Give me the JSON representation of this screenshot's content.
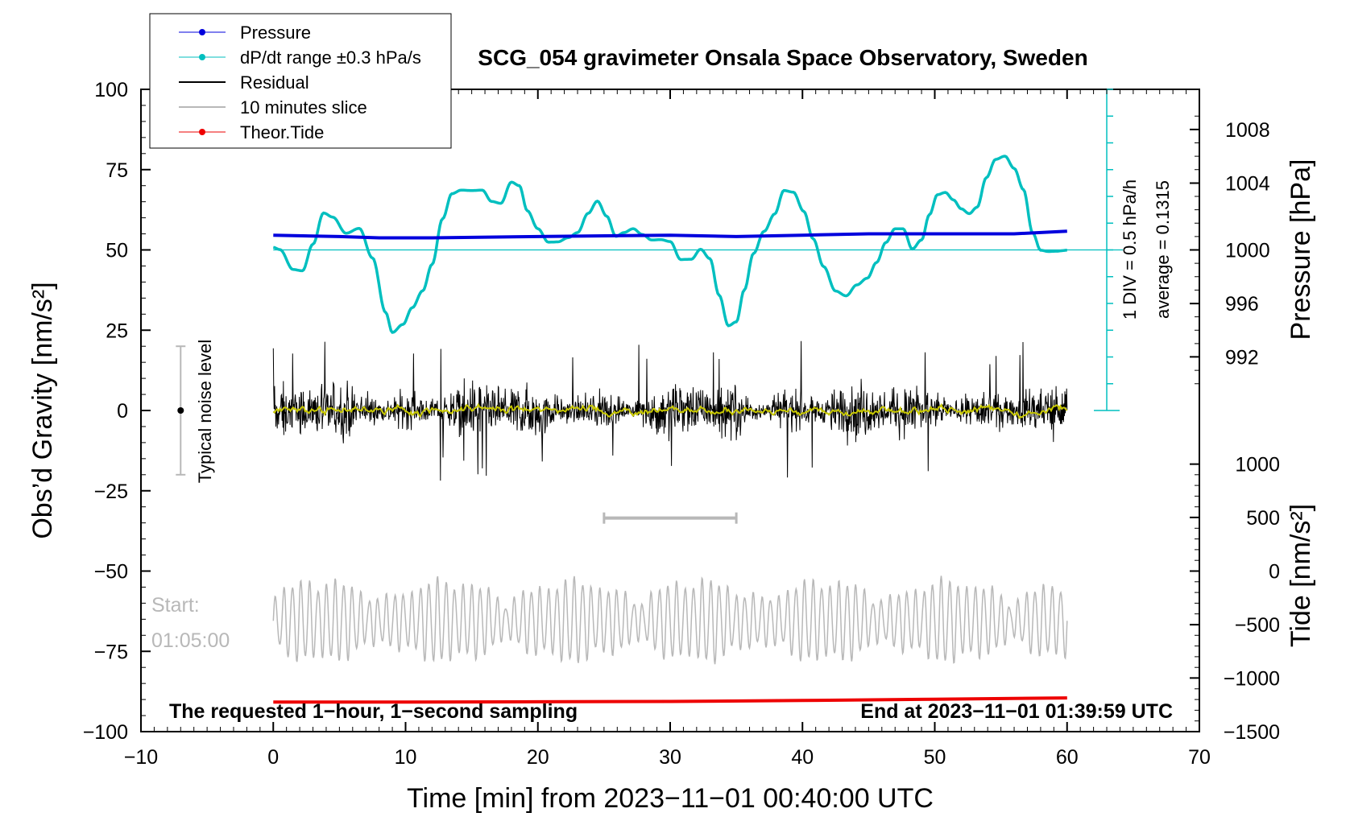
{
  "chart_data": {
    "type": "line",
    "title": "SCG_054 gravimeter Onsala Space Observatory, Sweden",
    "xlabel": "Time [min] from 2023−11−01 00:40:00 UTC",
    "ylabel_left": "Obs’d Gravity [nm/s²]",
    "ylabel_right_pressure": "Pressure [hPa]",
    "ylabel_right_tide": "Tide [nm/s²]",
    "xlim": [
      -10,
      70
    ],
    "ylim_left": [
      -100,
      100
    ],
    "x_ticks": [
      -10,
      0,
      10,
      20,
      30,
      40,
      50,
      60,
      70
    ],
    "x_tick_labels": [
      "−10",
      "0",
      "10",
      "20",
      "30",
      "40",
      "50",
      "60",
      "70"
    ],
    "y_ticks_left": [
      100,
      75,
      50,
      25,
      0,
      -25,
      -50,
      -75,
      -100
    ],
    "y_tick_labels_left": [
      "100",
      "75",
      "50",
      "25",
      "0",
      "−25",
      "−50",
      "−75",
      "−100"
    ],
    "pressure_axis": {
      "ticks": [
        1008,
        1004,
        1000,
        996,
        992
      ],
      "tick_labels": [
        "1008",
        "1004",
        "1000",
        "996",
        "992"
      ],
      "gravity_equiv": [
        87.5,
        70.8,
        50,
        33.3,
        16.7
      ]
    },
    "tide_axis": {
      "ticks": [
        1000,
        500,
        0,
        -500,
        -1000,
        -1500
      ],
      "tick_labels": [
        "1000",
        "500",
        "0",
        "−500",
        "−1000",
        "−1500"
      ],
      "gravity_equiv": [
        -16.7,
        -33.3,
        -50,
        -66.7,
        -83.3,
        -100
      ]
    },
    "legend": [
      {
        "label": "Pressure",
        "color": "#0000dd",
        "marker": true
      },
      {
        "label": "dP/dt range ±0.3 hPa/s",
        "color": "#00bfbf",
        "marker": true
      },
      {
        "label": "Residual",
        "color": "#000000",
        "marker": false
      },
      {
        "label": "10 minutes slice",
        "color": "#b8b8b8",
        "marker": false
      },
      {
        "label": "Theor.Tide",
        "color": "#ee0000",
        "marker": true
      }
    ],
    "series": [
      {
        "name": "Pressure",
        "color": "#0000dd",
        "x": [
          0,
          5,
          8,
          12,
          20,
          30,
          35,
          40,
          45,
          52,
          56,
          60
        ],
        "y": [
          1001.1,
          1001.0,
          1000.9,
          1000.9,
          1001.0,
          1001.1,
          1001.0,
          1001.1,
          1001.2,
          1001.2,
          1001.2,
          1001.4
        ]
      },
      {
        "name": "dP/dt range ±0.3 hPa/s",
        "color": "#00bfbf",
        "baseline": 50,
        "x": [
          0,
          0.5,
          1.5,
          2.2,
          3,
          3.8,
          4.5,
          5.5,
          6.5,
          7.5,
          8.5,
          9,
          9.8,
          10.5,
          11.3,
          12,
          12.8,
          13.5,
          14.2,
          15,
          15.8,
          16.5,
          17.2,
          18,
          18.6,
          19.2,
          20,
          20.8,
          21.5,
          22.3,
          23,
          23.8,
          24.5,
          25.2,
          25.9,
          26.5,
          27.2,
          27.9,
          28.6,
          29.3,
          30,
          30.8,
          31.6,
          32.3,
          33,
          33.7,
          34.4,
          35,
          35.6,
          36.3,
          37.1,
          37.9,
          38.6,
          39.3,
          40.1,
          40.8,
          41.6,
          42.5,
          43.3,
          44.1,
          44.9,
          45.6,
          46.3,
          47,
          47.6,
          48.3,
          49,
          49.6,
          50.2,
          50.8,
          51.4,
          52,
          52.6,
          53.2,
          53.9,
          54.6,
          55.3,
          56,
          56.7,
          57.4,
          58,
          58.6,
          59.2,
          60
        ],
        "y": [
          50.8,
          50.1,
          43.9,
          43.5,
          51.8,
          61.5,
          60.2,
          55.2,
          56.7,
          47.5,
          30.5,
          24.3,
          26.8,
          32.0,
          37.3,
          45.5,
          59.7,
          67.5,
          68.6,
          68.5,
          68.6,
          65.1,
          64.5,
          71.1,
          70.0,
          62.2,
          56.6,
          52.4,
          52.5,
          53.8,
          55.4,
          61.4,
          65.2,
          60.5,
          54.2,
          55.4,
          56.6,
          54.8,
          53.1,
          53.2,
          52.6,
          47.0,
          47.1,
          50.2,
          47.3,
          35.9,
          26.4,
          27.6,
          37.5,
          48.9,
          55.8,
          61.2,
          68.5,
          68.0,
          62.0,
          53.5,
          44.8,
          37.2,
          35.7,
          39.1,
          41.2,
          46.1,
          52.3,
          56.6,
          56.6,
          50.3,
          53.1,
          61.0,
          67.2,
          67.9,
          65.6,
          62.8,
          61.3,
          63.3,
          72.5,
          78.2,
          79.2,
          75.4,
          68.8,
          55.3,
          49.9,
          49.5,
          49.6,
          49.9
        ]
      },
      {
        "name": "Residual",
        "color": "#000000",
        "x": [
          0,
          60
        ],
        "y_center": 0,
        "amplitude_range": [
          -22,
          25
        ],
        "smooth_color": "#c8c800"
      },
      {
        "name": "10 minutes slice",
        "color": "#b8b8b8",
        "x": [
          0,
          60
        ],
        "y_center": -65.5,
        "amplitude_range": [
          -79,
          -51
        ]
      },
      {
        "name": "Theor.Tide",
        "color": "#ee0000",
        "x": [
          0,
          10,
          20,
          30,
          40,
          50,
          60
        ],
        "y": [
          -90.8,
          -90.8,
          -90.7,
          -90.6,
          -90.3,
          -89.9,
          -89.5
        ]
      }
    ],
    "slice_marker": {
      "x": [
        25,
        35
      ],
      "y": -33.5
    },
    "noise_level": {
      "x": -7,
      "y_center": 0,
      "y_range": [
        -20,
        20
      ],
      "label": "Typical noise level"
    },
    "dp_scale": {
      "label_div": "1 DIV = 0.5 hPa/h",
      "label_avg": "average = 0.1315",
      "x": 63,
      "y_range": [
        0,
        100
      ]
    },
    "annotations": {
      "bottom_left": "The requested 1−hour, 1−second sampling",
      "bottom_right": "End at 2023−11−01 01:39:59 UTC",
      "start_label": "Start:",
      "start_time": "01:05:00"
    }
  }
}
